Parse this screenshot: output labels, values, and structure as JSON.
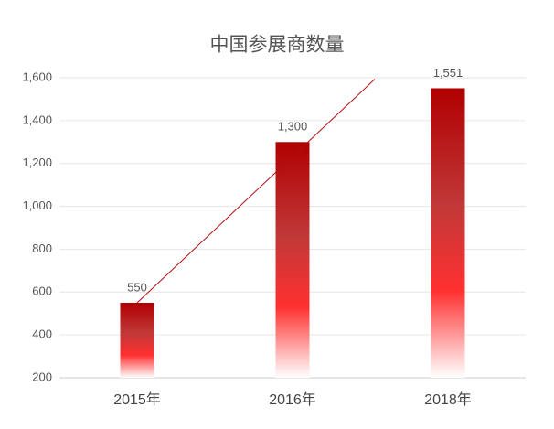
{
  "chart_data": {
    "type": "bar",
    "title": "中国参展商数量",
    "categories": [
      "2015年",
      "2016年",
      "2018年"
    ],
    "values": [
      550,
      1300,
      1551
    ],
    "value_labels": [
      "550",
      "1,300",
      "1,551"
    ],
    "color": "#b00000",
    "trendline": true,
    "trendline_color": "#b01010",
    "ylim": [
      200,
      1600
    ],
    "yticks": [
      200,
      400,
      600,
      800,
      {
        "value": 1000,
        "label": "1,000"
      },
      {
        "value": 1200,
        "label": "1,200"
      },
      {
        "value": 1400,
        "label": "1,400"
      },
      {
        "value": 1600,
        "label": "1,600"
      }
    ],
    "grid": true
  }
}
